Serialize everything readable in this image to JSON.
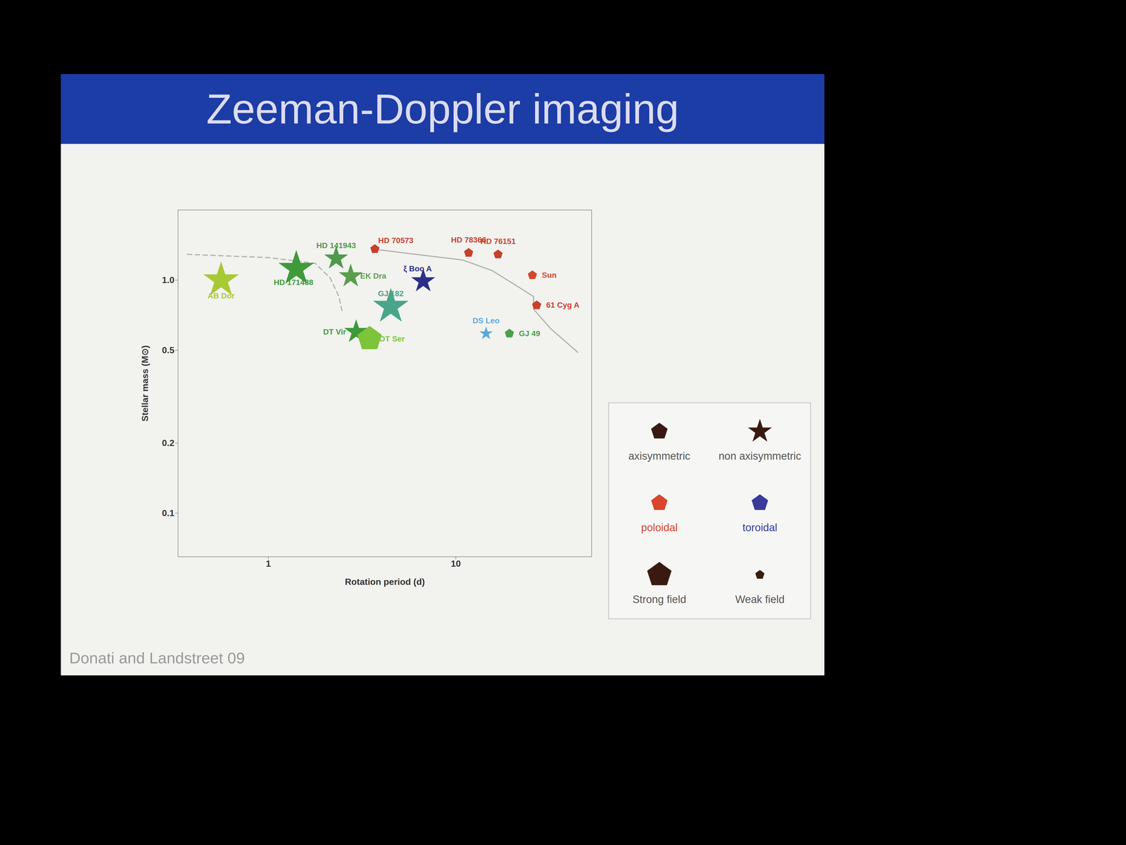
{
  "chart_data": {
    "type": "scatter",
    "title": "Zeeman-Doppler imaging",
    "x_label": "Rotation period (d)",
    "y_label": "Stellar mass (M⊙)",
    "log": true,
    "xlim": [
      0.33,
      53
    ],
    "ylim": [
      0.065,
      2
    ],
    "xticks": [
      1,
      10
    ],
    "yticks": [
      {
        "value": 1,
        "label": "1.0"
      },
      0.5,
      0.2,
      0.1
    ],
    "source": "Donati and Landstreet 09",
    "points": [
      {
        "name": "AB Dor",
        "x": 0.56,
        "y": 1.0,
        "marker": "star",
        "color": "#a9c934",
        "field": "strong"
      },
      {
        "name": "HD 171488",
        "x": 1.41,
        "y": 1.12,
        "marker": "star",
        "color": "#3f9a3a",
        "field": "strong"
      },
      {
        "name": "HD 141943",
        "x": 2.3,
        "y": 1.24,
        "marker": "star",
        "color": "#4e9a4a",
        "field": "medium"
      },
      {
        "name": "EK Dra",
        "x": 2.75,
        "y": 1.04,
        "marker": "star",
        "color": "#5a9e4c",
        "field": "medium"
      },
      {
        "name": "GJ 182",
        "x": 4.5,
        "y": 0.77,
        "marker": "star",
        "color": "#48a58a",
        "field": "strong"
      },
      {
        "name": "ξ Boo A",
        "x": 6.7,
        "y": 0.99,
        "marker": "star",
        "color": "#2b2f8a",
        "field": "medium"
      },
      {
        "name": "DT Vir",
        "x": 2.94,
        "y": 0.6,
        "marker": "star",
        "color": "#3d9a3a",
        "field": "medium"
      },
      {
        "name": "OT Ser",
        "x": 3.47,
        "y": 0.56,
        "marker": "pentagon",
        "color": "#7cc43a",
        "field": "strong"
      },
      {
        "name": "DS Leo",
        "x": 14.5,
        "y": 0.59,
        "marker": "star",
        "color": "#5aa8d8",
        "field": "weak"
      },
      {
        "name": "GJ 49",
        "x": 19.3,
        "y": 0.59,
        "marker": "pentagon",
        "color": "#4aa04a",
        "field": "weak"
      },
      {
        "name": "HD 70573",
        "x": 3.7,
        "y": 1.36,
        "marker": "pentagon",
        "color": "#c8402a",
        "field": "weak"
      },
      {
        "name": "HD 78366",
        "x": 11.7,
        "y": 1.31,
        "marker": "pentagon",
        "color": "#c8402a",
        "field": "weak"
      },
      {
        "name": "HD 76151",
        "x": 16.8,
        "y": 1.29,
        "marker": "pentagon",
        "color": "#c8402a",
        "field": "weak"
      },
      {
        "name": "Sun",
        "x": 25.6,
        "y": 1.05,
        "marker": "pentagon",
        "color": "#d04a2a",
        "field": "weak"
      },
      {
        "name": "61 Cyg A",
        "x": 27,
        "y": 0.78,
        "marker": "pentagon",
        "color": "#c8402a",
        "field": "weak"
      }
    ],
    "curves": [
      {
        "line_style": "dashed",
        "color": "#b0b0b0",
        "x": [
          0.37,
          1,
          1.78,
          2.14,
          2.38,
          2.47
        ],
        "y": [
          1.29,
          1.25,
          1.18,
          1.02,
          0.85,
          0.74
        ]
      },
      {
        "line_style": "solid",
        "color": "#b0b0b0",
        "x": [
          3.63,
          6.1,
          10.9,
          15.6,
          20.9,
          26,
          26,
          32,
          44.7
        ],
        "y": [
          1.36,
          1.29,
          1.22,
          1.1,
          0.95,
          0.85,
          0.75,
          0.62,
          0.49
        ]
      }
    ],
    "legend_items": [
      {
        "label": "axisymmetric",
        "marker": "pentagon",
        "color": "#3a1a10",
        "field": "medium"
      },
      {
        "label": "non axisymmetric",
        "marker": "star",
        "color": "#3a1a10",
        "field": "medium"
      },
      {
        "label": "poloidal",
        "marker": "pentagon",
        "color": "#d9452a",
        "field": "medium"
      },
      {
        "label": "toroidal",
        "marker": "pentagon",
        "color": "#3a3a9a",
        "field": "medium"
      },
      {
        "label": "Strong field",
        "marker": "pentagon",
        "color": "#3a1a10",
        "field": "strong"
      },
      {
        "label": "Weak field",
        "marker": "pentagon",
        "color": "#3a1a10",
        "field": "weak"
      }
    ]
  }
}
